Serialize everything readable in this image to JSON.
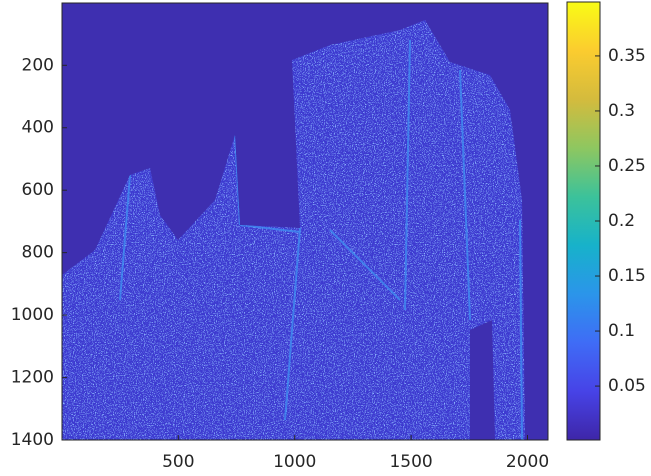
{
  "chart_data": {
    "type": "image",
    "xlim": [
      0.5,
      2088
    ],
    "xticks": [
      500,
      1000,
      1500,
      2000
    ],
    "ylim": [
      0.5,
      1400
    ],
    "yticks": [
      200,
      400,
      600,
      800,
      1000,
      1200,
      1400
    ],
    "y_reversed": true,
    "colorbar": {
      "lim": [
        0.001,
        0.399
      ],
      "ticks": [
        0.05,
        0.1,
        0.15,
        0.2,
        0.25,
        0.3,
        0.35
      ],
      "colors": [
        "#3e26a8",
        "#4743e7",
        "#3f6cf6",
        "#2b95ea",
        "#17b2ca",
        "#3cc29a",
        "#8ec760",
        "#d4bb3d",
        "#fbcc2f",
        "#f9fb15"
      ]
    }
  }
}
